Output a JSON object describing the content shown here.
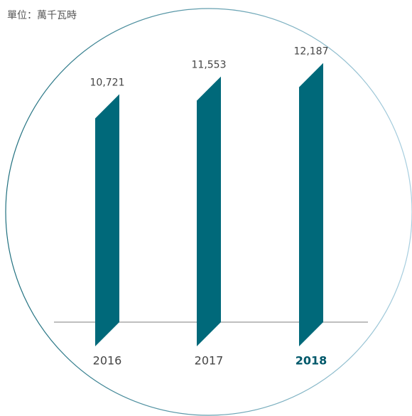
{
  "chart_data": {
    "type": "bar",
    "subtitle": "單位：萬千瓦時",
    "categories": [
      "2016",
      "2017",
      "2018"
    ],
    "values": [
      10721,
      11553,
      12187
    ],
    "value_labels": [
      "10,721",
      "11,553",
      "12,187"
    ],
    "color": "#00697a"
  }
}
